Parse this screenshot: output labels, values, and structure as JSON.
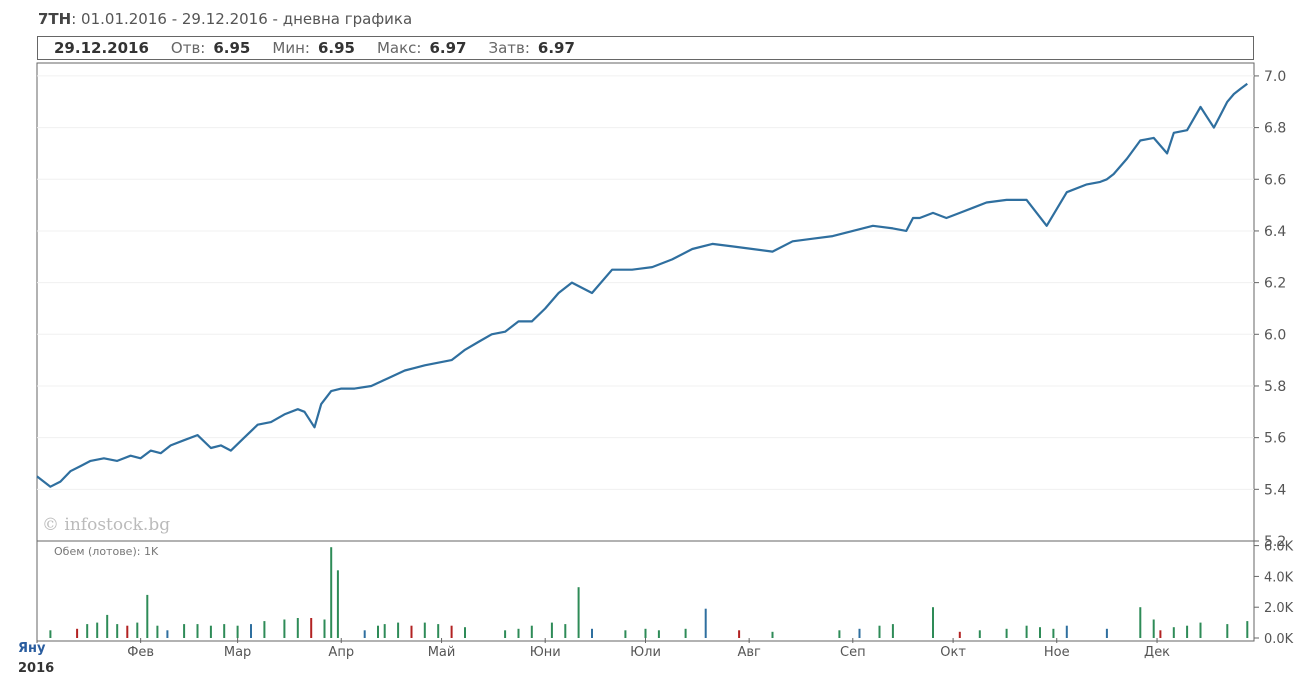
{
  "header": {
    "symbol": "7TH",
    "range_text": ": 01.01.2016 - 29.12.2016 - дневна графика"
  },
  "info": {
    "date": "29.12.2016",
    "open_label": "Отв:",
    "open_value": "6.95",
    "low_label": "Мин:",
    "low_value": "6.95",
    "high_label": "Макс:",
    "high_value": "6.97",
    "close_label": "Затв:",
    "close_value": "6.97"
  },
  "watermark": "© infostock.bg",
  "volume_label": "Обем (лотове): 1K",
  "x_start_label": "Яну",
  "x_start_year": "2016",
  "colors": {
    "line": "#2f6f9f",
    "up": "#2e8b57",
    "down": "#b22222",
    "neutral": "#2f6f9f"
  },
  "chart_data": [
    {
      "type": "line",
      "y_ticks": [
        "5.2",
        "5.4",
        "5.6",
        "5.8",
        "6.0",
        "6.2",
        "6.4",
        "6.6",
        "6.8",
        "7.0"
      ],
      "ylim": [
        5.2,
        7.05
      ],
      "x_ticks": [
        "Яну",
        "Фев",
        "Мар",
        "Апр",
        "Май",
        "Юни",
        "Юли",
        "Авг",
        "Сеп",
        "Окт",
        "Ное",
        "Дек"
      ],
      "series": [
        {
          "x": [
            0,
            4,
            7,
            10,
            13,
            16,
            20,
            24,
            28,
            31,
            34,
            37,
            40,
            44,
            48,
            52,
            55,
            58,
            62,
            66,
            70,
            74,
            78,
            80,
            83,
            85,
            88,
            91,
            95,
            100,
            105,
            110,
            113,
            116,
            120,
            124,
            126,
            128,
            132,
            136,
            140,
            144,
            148,
            152,
            156,
            160,
            166,
            172,
            178,
            184,
            190,
            196,
            202,
            208,
            214,
            220,
            226,
            232,
            238,
            244,
            250,
            256,
            260,
            262,
            264,
            268,
            272,
            276,
            280,
            284,
            290,
            296,
            302,
            308,
            314,
            318,
            320,
            322,
            326,
            330,
            334,
            338,
            340,
            344,
            348,
            350,
            352,
            354,
            356,
            358,
            360,
            362
          ],
          "y": [
            5.45,
            5.41,
            5.43,
            5.47,
            5.49,
            5.51,
            5.52,
            5.51,
            5.53,
            5.52,
            5.55,
            5.54,
            5.57,
            5.59,
            5.61,
            5.56,
            5.57,
            5.55,
            5.6,
            5.65,
            5.66,
            5.69,
            5.71,
            5.7,
            5.64,
            5.73,
            5.78,
            5.79,
            5.79,
            5.8,
            5.83,
            5.86,
            5.87,
            5.88,
            5.89,
            5.9,
            5.92,
            5.94,
            5.97,
            6.0,
            6.01,
            6.05,
            6.05,
            6.1,
            6.16,
            6.2,
            6.16,
            6.25,
            6.25,
            6.26,
            6.29,
            6.33,
            6.35,
            6.34,
            6.33,
            6.32,
            6.36,
            6.37,
            6.38,
            6.4,
            6.42,
            6.41,
            6.4,
            6.45,
            6.45,
            6.47,
            6.45,
            6.47,
            6.49,
            6.51,
            6.52,
            6.52,
            6.42,
            6.55,
            6.58,
            6.59,
            6.6,
            6.62,
            6.68,
            6.75,
            6.76,
            6.7,
            6.78,
            6.79,
            6.88,
            6.84,
            6.8,
            6.85,
            6.9,
            6.93,
            6.95,
            6.97
          ]
        }
      ]
    },
    {
      "type": "bar",
      "y_ticks": [
        "0.0K",
        "2.0K",
        "4.0K",
        "6.0K"
      ],
      "ylim": [
        0,
        6.3
      ],
      "x": [
        4,
        12,
        15,
        18,
        21,
        24,
        27,
        30,
        33,
        36,
        39,
        44,
        48,
        52,
        56,
        60,
        64,
        68,
        74,
        78,
        82,
        86,
        88,
        90,
        98,
        102,
        104,
        108,
        112,
        116,
        120,
        124,
        128,
        140,
        144,
        148,
        154,
        158,
        162,
        166,
        176,
        182,
        186,
        194,
        200,
        210,
        220,
        240,
        246,
        252,
        256,
        268,
        276,
        282,
        290,
        296,
        300,
        304,
        308,
        320,
        330,
        334,
        336,
        340,
        344,
        348,
        356,
        362
      ],
      "values": [
        0.5,
        0.6,
        0.9,
        1.0,
        1.5,
        0.9,
        0.8,
        1.0,
        2.8,
        0.8,
        0.5,
        0.9,
        0.9,
        0.8,
        0.9,
        0.8,
        0.9,
        1.1,
        1.2,
        1.3,
        1.3,
        1.2,
        5.9,
        4.4,
        0.5,
        0.8,
        0.9,
        1.0,
        0.8,
        1.0,
        0.9,
        0.8,
        0.7,
        0.5,
        0.6,
        0.8,
        1.0,
        0.9,
        3.3,
        0.6,
        0.5,
        0.6,
        0.5,
        0.6,
        1.9,
        0.5,
        0.4,
        0.5,
        0.6,
        0.8,
        0.9,
        2.0,
        0.4,
        0.5,
        0.6,
        0.8,
        0.7,
        0.6,
        0.8,
        0.6,
        2.0,
        1.2,
        0.5,
        0.7,
        0.8,
        1.0,
        0.9,
        1.1
      ],
      "dirs": [
        "up",
        "down",
        "up",
        "up",
        "up",
        "up",
        "down",
        "up",
        "up",
        "up",
        "neutral",
        "up",
        "up",
        "up",
        "up",
        "up",
        "neutral",
        "up",
        "up",
        "up",
        "down",
        "up",
        "up",
        "up",
        "neutral",
        "up",
        "up",
        "up",
        "down",
        "up",
        "up",
        "down",
        "up",
        "up",
        "up",
        "up",
        "up",
        "up",
        "up",
        "neutral",
        "up",
        "up",
        "up",
        "up",
        "neutral",
        "down",
        "up",
        "up",
        "neutral",
        "up",
        "up",
        "up",
        "down",
        "up",
        "up",
        "up",
        "up",
        "up",
        "neutral",
        "neutral",
        "up",
        "up",
        "down",
        "up",
        "up",
        "up",
        "up",
        "up"
      ]
    }
  ]
}
